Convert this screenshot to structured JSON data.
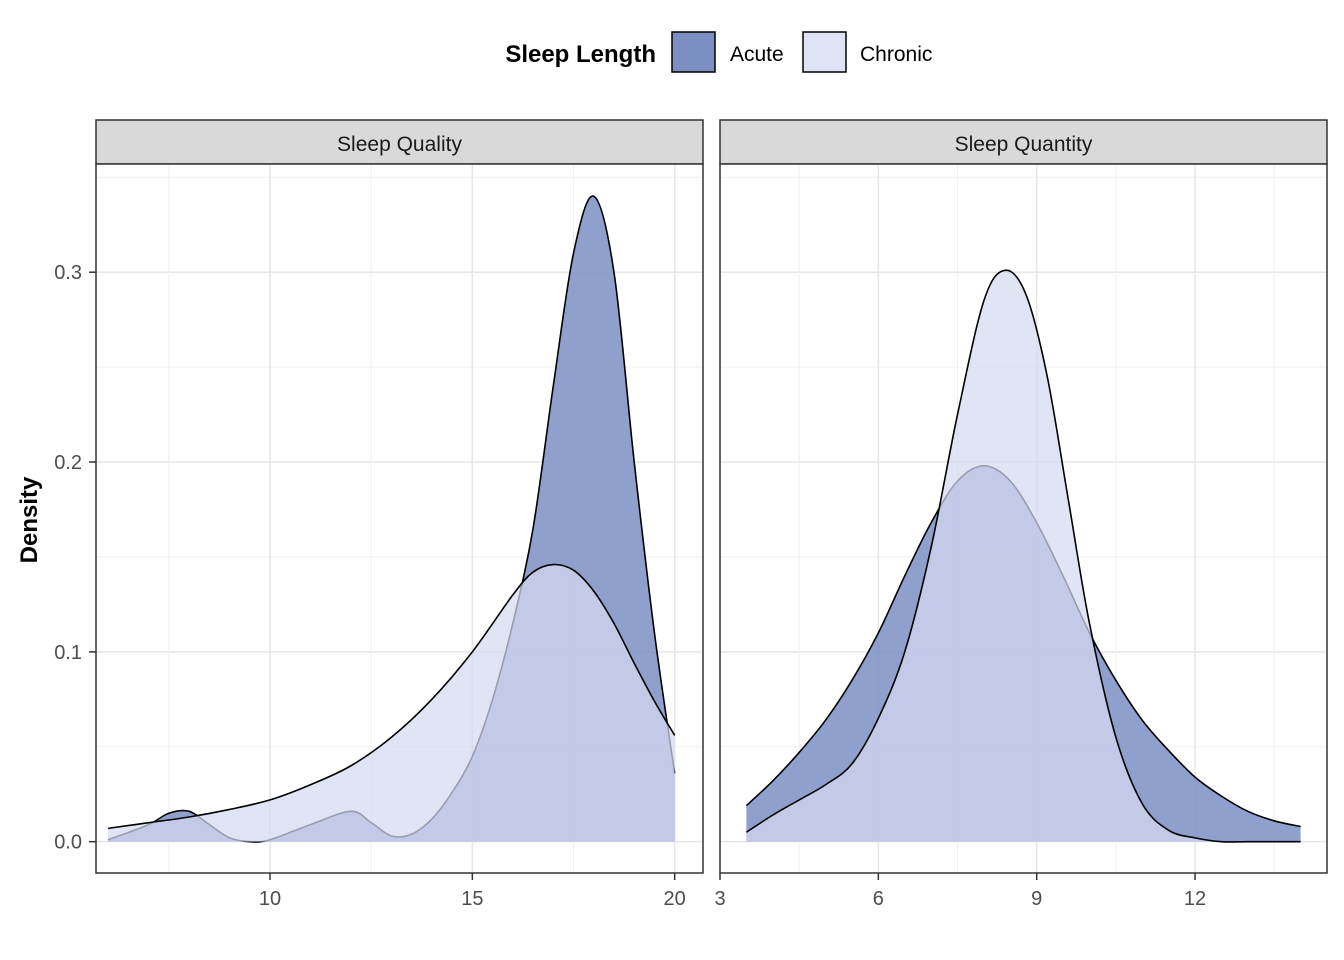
{
  "chart_data": {
    "type": "area",
    "ylabel": "Density",
    "ylim": [
      -0.0165,
      0.357
    ],
    "yticks": [
      0.0,
      0.1,
      0.2,
      0.3
    ],
    "ytick_labels": [
      "0.0",
      "0.1",
      "0.2",
      "0.3"
    ],
    "legend": {
      "title": "Sleep Length",
      "position": "top",
      "entries": [
        {
          "name": "Acute",
          "color": "#7b8fc3"
        },
        {
          "name": "Chronic",
          "color": "#d5daf1"
        }
      ]
    },
    "panels": [
      {
        "strip": "Sleep Quality",
        "xlim": [
          5.7,
          20.7
        ],
        "xticks": [
          10,
          15,
          20
        ],
        "xtick_labels": [
          "10",
          "15",
          "20"
        ],
        "series": [
          {
            "name": "Acute",
            "x": [
              6,
              7,
              7.5,
              8,
              8.5,
              9,
              9.5,
              10,
              11,
              12,
              12.5,
              13,
              13.5,
              14,
              14.5,
              15,
              15.5,
              16,
              16.5,
              17,
              17.5,
              18,
              18.5,
              19,
              19.5,
              20
            ],
            "y": [
              0.001,
              0.009,
              0.015,
              0.016,
              0.009,
              0.002,
              0.0,
              0.001,
              0.009,
              0.016,
              0.01,
              0.003,
              0.004,
              0.012,
              0.026,
              0.045,
              0.075,
              0.115,
              0.165,
              0.24,
              0.31,
              0.34,
              0.3,
              0.2,
              0.11,
              0.036
            ]
          },
          {
            "name": "Chronic",
            "x": [
              6,
              7,
              8,
              9,
              10,
              11,
              12,
              13,
              14,
              15,
              16,
              16.5,
              17,
              17.5,
              18,
              18.5,
              19,
              19.5,
              20
            ],
            "y": [
              0.007,
              0.01,
              0.013,
              0.017,
              0.022,
              0.03,
              0.04,
              0.055,
              0.075,
              0.1,
              0.13,
              0.142,
              0.146,
              0.143,
              0.132,
              0.115,
              0.094,
              0.074,
              0.056
            ]
          }
        ]
      },
      {
        "strip": "Sleep Quantity",
        "xlim": [
          3.0,
          14.5
        ],
        "xticks": [
          3,
          6,
          9,
          12
        ],
        "xtick_labels": [
          "3",
          "6",
          "9",
          "12"
        ],
        "series": [
          {
            "name": "Acute",
            "x": [
              3.5,
              4,
              4.5,
              5,
              5.5,
              6,
              6.5,
              7,
              7.5,
              8,
              8.5,
              9,
              9.5,
              10,
              10.5,
              11,
              11.5,
              12,
              12.5,
              13,
              13.5,
              14
            ],
            "y": [
              0.019,
              0.032,
              0.047,
              0.064,
              0.085,
              0.11,
              0.14,
              0.168,
              0.19,
              0.198,
              0.19,
              0.168,
              0.14,
              0.11,
              0.085,
              0.064,
              0.048,
              0.034,
              0.024,
              0.016,
              0.011,
              0.008
            ]
          },
          {
            "name": "Chronic",
            "x": [
              3.5,
              4,
              4.5,
              5,
              5.5,
              6,
              6.5,
              7,
              7.5,
              8,
              8.4,
              8.8,
              9.2,
              9.6,
              10,
              10.5,
              11,
              11.5,
              12,
              12.5,
              13,
              13.5,
              14
            ],
            "y": [
              0.005,
              0.014,
              0.022,
              0.03,
              0.041,
              0.065,
              0.1,
              0.155,
              0.225,
              0.285,
              0.301,
              0.288,
              0.245,
              0.18,
              0.115,
              0.055,
              0.02,
              0.006,
              0.002,
              0.0,
              0.0,
              0.0,
              0.0
            ]
          }
        ]
      }
    ]
  }
}
